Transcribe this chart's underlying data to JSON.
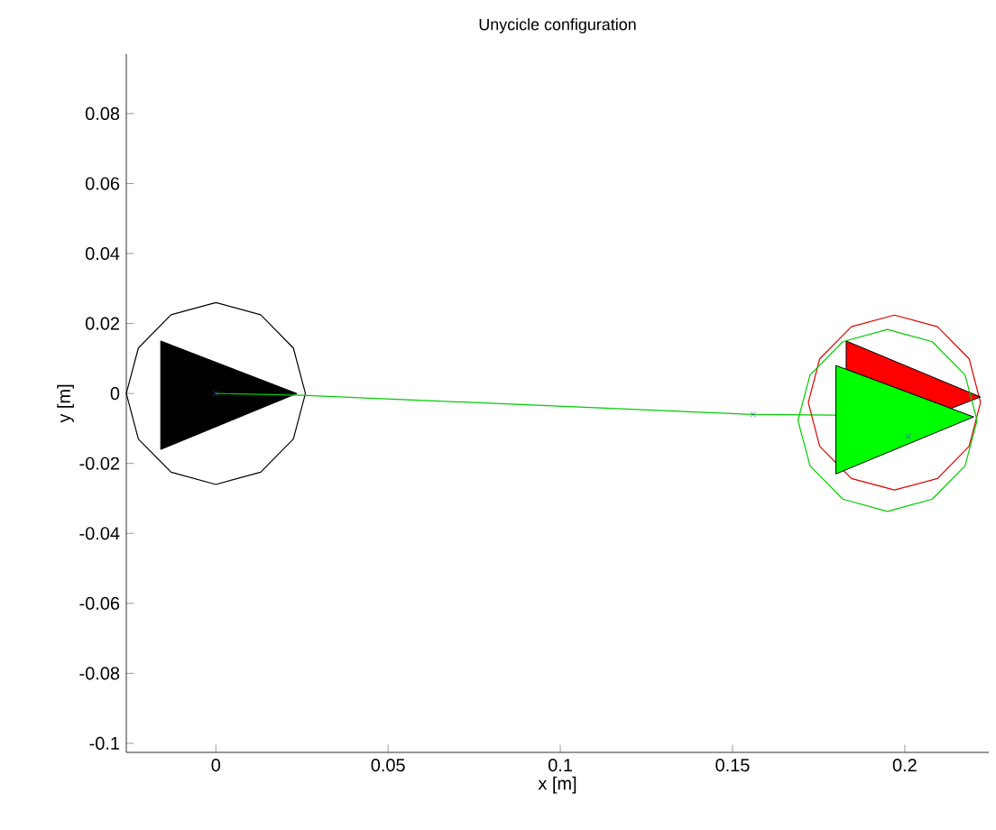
{
  "chart_data": {
    "type": "line",
    "title": "Unycicle configuration",
    "xlabel": "x [m]",
    "ylabel": "y [m]",
    "xlim": [
      -0.026,
      0.2244
    ],
    "ylim": [
      -0.1026,
      0.097
    ],
    "xticks": [
      0,
      0.05,
      0.1,
      0.15,
      0.2
    ],
    "yticks": [
      -0.1,
      -0.08,
      -0.06,
      -0.04,
      -0.02,
      0,
      0.02,
      0.04,
      0.06,
      0.08
    ],
    "grid": false,
    "series": [
      {
        "color": "#000000",
        "x": [
          -0.026,
          -0.0225,
          -0.013,
          0,
          0.013,
          0.0225,
          0.026
        ],
        "values": [
          0,
          0.013,
          0.0225,
          0.026,
          0.0225,
          0.013,
          0
        ]
      },
      {
        "color": "#000000",
        "x": [
          -0.026,
          -0.0225,
          -0.013,
          0,
          0.013,
          0.0225,
          0.026
        ],
        "values": [
          0,
          -0.013,
          -0.0225,
          -0.026,
          -0.0225,
          -0.013,
          0
        ]
      },
      {
        "type": "area",
        "color": "#000000",
        "x": [
          -0.016,
          -0.016,
          0.0235
        ],
        "values": [
          0.015,
          -0.016,
          0
        ]
      },
      {
        "color": "#00cc00",
        "x": [
          0,
          0.025,
          0.156,
          0.18
        ],
        "values": [
          0,
          -0.0005,
          -0.006,
          -0.0062
        ]
      },
      {
        "color": "#dd0000",
        "x": [
          0.172,
          0.1753,
          0.1845,
          0.197,
          0.2095,
          0.2187,
          0.222
        ],
        "values": [
          -0.0026,
          0.0099,
          0.0191,
          0.0224,
          0.0191,
          0.0099,
          -0.0026
        ]
      },
      {
        "color": "#dd0000",
        "x": [
          0.172,
          0.1753,
          0.1845,
          0.197,
          0.2095,
          0.2187,
          0.222
        ],
        "values": [
          -0.0026,
          -0.0151,
          -0.0243,
          -0.0276,
          -0.0243,
          -0.0151,
          -0.0026
        ]
      },
      {
        "type": "area",
        "color": "#ff0000",
        "x": [
          0.183,
          0.222,
          0.2134,
          0.183
        ],
        "values": [
          0.015,
          -0.001,
          -0.0043,
          0.0069
        ]
      },
      {
        "type": "area",
        "color": "#00ff00",
        "x": [
          0.18,
          0.18,
          0.22
        ],
        "values": [
          0.008,
          -0.023,
          -0.0067
        ]
      },
      {
        "color": "#00cc00",
        "x": [
          0.169,
          0.1725,
          0.182,
          0.195,
          0.208,
          0.2175,
          0.221
        ],
        "values": [
          -0.0077,
          0.0053,
          0.0148,
          0.0183,
          0.0148,
          0.0053,
          -0.0077
        ]
      },
      {
        "color": "#00cc00",
        "x": [
          0.169,
          0.1725,
          0.182,
          0.195,
          0.208,
          0.2175,
          0.221
        ],
        "values": [
          -0.0077,
          -0.0207,
          -0.0302,
          -0.0337,
          -0.0302,
          -0.0207,
          -0.0077
        ]
      },
      {
        "type": "scatter",
        "color": "#3050c0",
        "marker": "cross",
        "x": [
          0,
          0.156,
          0.201
        ],
        "values": [
          0,
          -0.006,
          -0.0123
        ]
      }
    ]
  }
}
